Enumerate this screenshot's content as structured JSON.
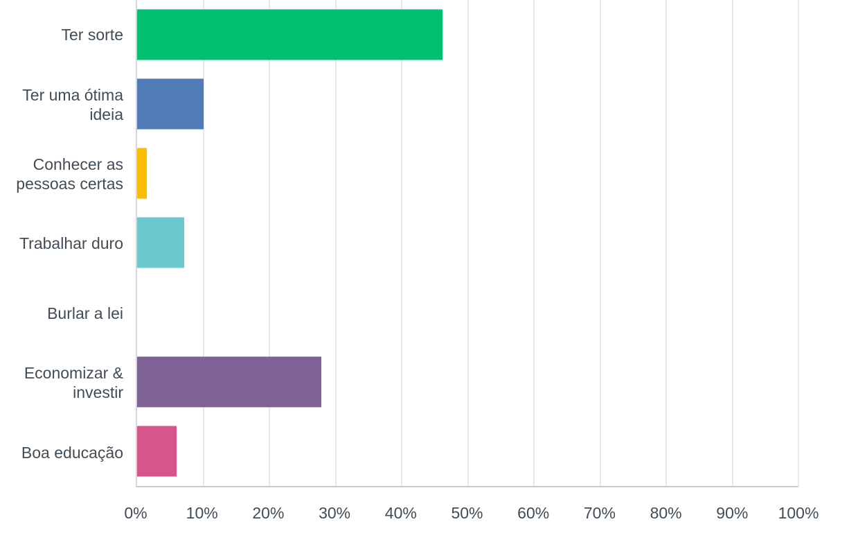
{
  "chart_data": {
    "type": "bar",
    "orientation": "horizontal",
    "title": "",
    "xlabel": "",
    "ylabel": "",
    "categories": [
      "Ter sorte",
      "Ter uma ótima ideia",
      "Conhecer as pessoas certas",
      "Trabalhar duro",
      "Burlar a lei",
      "Economizar & investir",
      "Boa educação"
    ],
    "values": [
      46.2,
      10.1,
      1.5,
      7.1,
      0,
      27.9,
      6.0
    ],
    "bar_colors": [
      "#00BF6F",
      "#507CB6",
      "#F9BE00",
      "#6BC8CD",
      null,
      "#7E6195",
      "#D6568C"
    ],
    "x_ticks": [
      "0%",
      "10%",
      "20%",
      "30%",
      "40%",
      "50%",
      "60%",
      "70%",
      "80%",
      "90%",
      "100%"
    ],
    "xlim": [
      0,
      100
    ],
    "grid": "vertical-only",
    "legend": "none"
  },
  "colors": {
    "background": "#ffffff",
    "text": "#424C57",
    "gridline": "#e8e8e8",
    "axis_line": "#d6d6d6",
    "bottom_axis_line": "#cbcbcb"
  }
}
